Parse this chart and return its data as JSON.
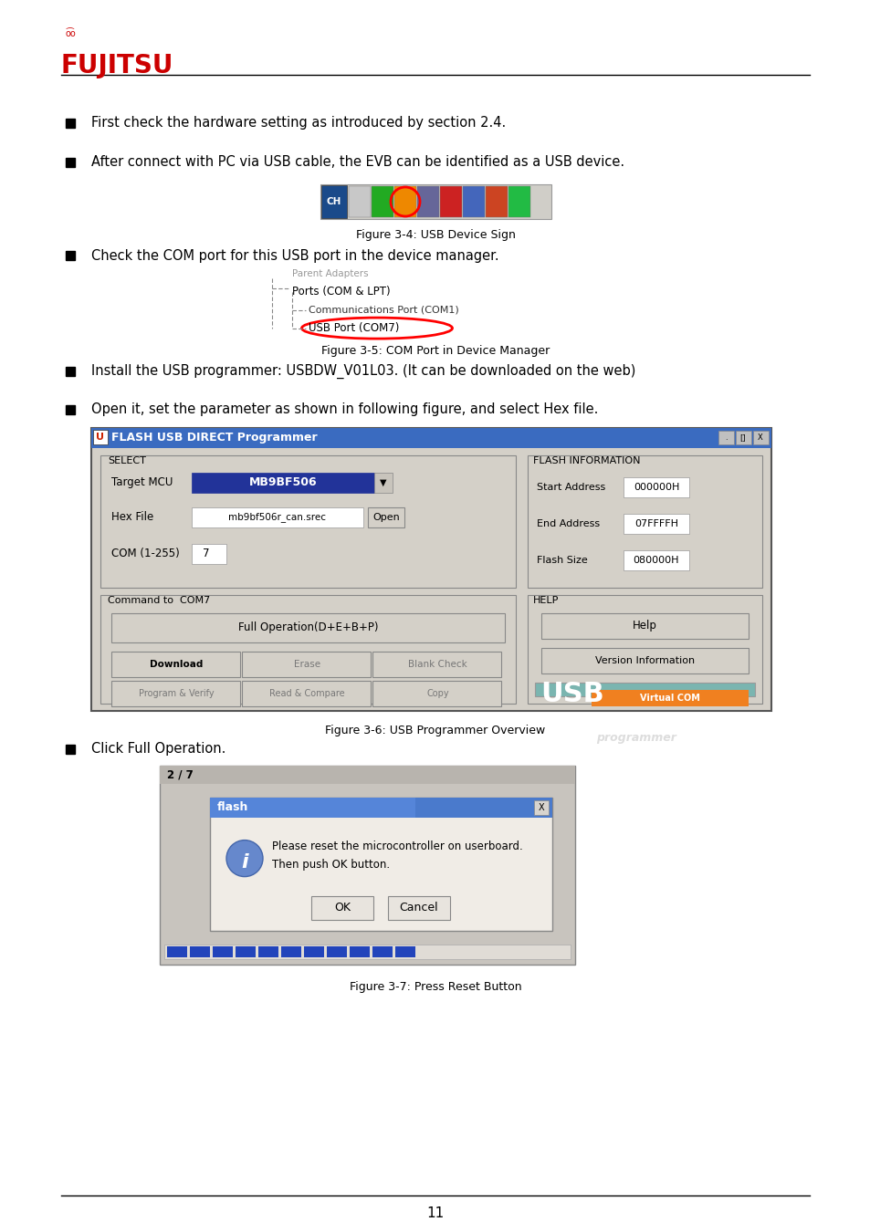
{
  "bg_color": "#ffffff",
  "fujitsu_color": "#cc0000",
  "page_number": "11",
  "bullet1": "First check the hardware setting as introduced by section 2.4.",
  "bullet2": "After connect with PC via USB cable, the EVB can be identified as a USB device.",
  "bullet3": "Check the COM port for this USB port in the device manager.",
  "bullet4": "Install the USB programmer: USBDW_V01L03. (It can be downloaded on the web)",
  "bullet5": "Open it, set the parameter as shown in following figure, and select Hex file.",
  "bullet6": "Click Full Operation.",
  "fig34_caption": "Figure 3-4: USB Device Sign",
  "fig35_caption": "Figure 3-5: COM Port in Device Manager",
  "fig36_caption": "Figure 3-6: USB Programmer Overview",
  "fig37_caption": "Figure 3-7: Press Reset Button",
  "dlg_title": "FLASH USB DIRECT Programmer",
  "sel_label": "SELECT",
  "fi_label": "FLASH INFORMATION",
  "cmd_label": "Command to  COM7",
  "help_label": "HELP",
  "mcu_val": "MB9BF506",
  "hex_val": "mb9bf506r_can.srec",
  "com_val": "7",
  "start_addr": "000000H",
  "end_addr": "07FFFFH",
  "flash_size": "080000H",
  "full_op": "Full Operation(D+E+B+P)",
  "flash_msg1": "Please reset the microcontroller on userboard.",
  "flash_msg2": "Then push OK button."
}
